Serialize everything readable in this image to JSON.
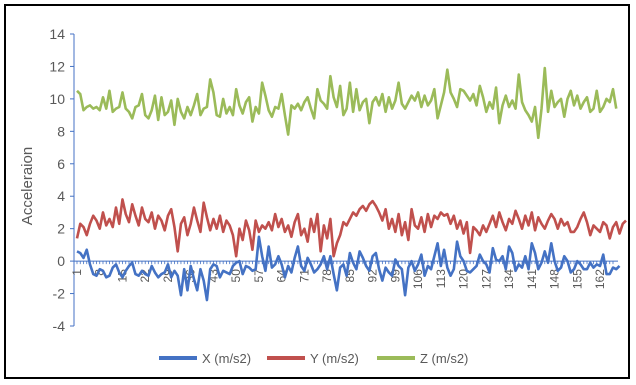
{
  "chart_data": {
    "type": "line",
    "title": "",
    "xlabel": "",
    "ylabel": "Acceleraion",
    "ylim": [
      -4,
      14
    ],
    "yticks": [
      -4,
      -2,
      0,
      2,
      4,
      6,
      8,
      10,
      12,
      14
    ],
    "xlim": [
      1,
      166
    ],
    "xticks": [
      1,
      8,
      15,
      22,
      29,
      36,
      43,
      50,
      57,
      64,
      71,
      78,
      85,
      92,
      99,
      106,
      113,
      120,
      127,
      134,
      141,
      148,
      155,
      162
    ],
    "grid": false,
    "legend_position": "bottom",
    "series": [
      {
        "name": "X (m/s2)",
        "color": "#4472C4",
        "values": [
          0.6,
          0.5,
          0.2,
          0.7,
          -0.2,
          -0.8,
          -0.9,
          -0.5,
          -0.6,
          -1.0,
          -0.9,
          -0.4,
          -0.2,
          -0.7,
          -1.0,
          -0.6,
          -0.3,
          -0.1,
          -0.8,
          -0.9,
          -0.6,
          -0.8,
          -0.9,
          -0.3,
          -0.7,
          -1.0,
          -0.8,
          -0.7,
          -0.2,
          -1.0,
          -0.6,
          -0.9,
          -2.1,
          -0.5,
          -1.8,
          -0.3,
          -1.1,
          -1.8,
          -0.5,
          -1.2,
          -2.4,
          -0.5,
          -0.2,
          -0.3,
          -1.0,
          -0.6,
          -0.7,
          -0.8,
          -0.3,
          -0.1,
          0.0,
          -0.8,
          -0.3,
          -0.4,
          -0.6,
          -0.5,
          1.5,
          0.3,
          -0.6,
          0.9,
          -0.4,
          -0.2,
          0.3,
          -0.2,
          -1.0,
          -0.3,
          -0.7,
          0.2,
          0.9,
          -0.3,
          -0.6,
          0.2,
          -0.2,
          -0.7,
          -0.5,
          -0.2,
          0.3,
          -0.5,
          0.3,
          -0.8,
          -1.8,
          -0.4,
          -0.2,
          -0.9,
          0.5,
          -0.1,
          -0.5,
          0.6,
          0.2,
          -0.3,
          -0.6,
          0.3,
          0.5,
          -0.5,
          -1.2,
          -0.4,
          -0.7,
          -0.9,
          0.1,
          -0.3,
          -0.5,
          -2.1,
          -0.4,
          0.0,
          -0.6,
          -0.2,
          0.4,
          -0.9,
          -0.3,
          -0.5,
          0.3,
          1.1,
          -0.3,
          0.7,
          -0.4,
          -0.9,
          -0.5,
          1.2,
          0.3,
          0.0,
          -0.6,
          -0.7,
          -0.5,
          -0.3,
          0.4,
          0.0,
          -0.2,
          -0.7,
          0.8,
          0.1,
          0.0,
          0.3,
          -0.5,
          0.9,
          0.5,
          -0.6,
          -0.2,
          -0.4,
          0.3,
          -0.5,
          1.1,
          0.5,
          -0.5,
          -0.1,
          0.6,
          -0.1,
          1.1,
          0.0,
          -0.6,
          -0.4,
          0.3,
          0.0,
          -0.7,
          -0.5,
          0.0,
          -0.2,
          -0.5,
          -0.5,
          -0.1,
          -0.4,
          -0.2,
          -0.3,
          0.4,
          -0.8,
          -0.8,
          -0.4,
          -0.5,
          -0.3
        ]
      },
      {
        "name": "Y (m/s2)",
        "color": "#C0504D",
        "values": [
          1.4,
          2.3,
          2.1,
          1.6,
          2.3,
          2.8,
          2.5,
          2.0,
          3.0,
          2.2,
          2.6,
          2.1,
          3.3,
          2.3,
          3.8,
          2.9,
          2.4,
          3.5,
          2.8,
          2.2,
          3.3,
          2.6,
          2.4,
          3.0,
          2.0,
          2.8,
          2.5,
          1.9,
          2.8,
          3.2,
          2.1,
          0.6,
          2.3,
          2.7,
          1.6,
          2.3,
          3.3,
          2.5,
          1.8,
          3.6,
          2.7,
          1.9,
          2.6,
          2.0,
          2.8,
          1.8,
          2.5,
          2.2,
          1.6,
          0.3,
          2.0,
          1.3,
          2.5,
          1.9,
          0.7,
          2.5,
          1.8,
          2.2,
          2.0,
          2.4,
          1.9,
          2.9,
          2.1,
          2.6,
          1.8,
          2.2,
          1.5,
          2.4,
          2.9,
          1.6,
          2.0,
          1.2,
          2.6,
          1.8,
          2.9,
          0.6,
          2.2,
          1.4,
          2.6,
          0.3,
          1.1,
          1.6,
          2.4,
          2.2,
          2.6,
          3.0,
          2.8,
          3.2,
          3.4,
          3.1,
          3.5,
          3.7,
          3.4,
          3.0,
          2.5,
          3.2,
          2.0,
          2.6,
          1.8,
          2.9,
          1.6,
          2.4,
          1.3,
          3.2,
          2.2,
          2.0,
          2.7,
          1.8,
          2.9,
          2.1,
          2.8,
          2.6,
          3.0,
          2.8,
          2.9,
          2.3,
          2.8,
          2.0,
          2.5,
          1.7,
          2.4,
          0.5,
          2.1,
          1.9,
          1.6,
          2.2,
          1.8,
          2.3,
          2.8,
          2.1,
          3.0,
          2.4,
          1.9,
          2.6,
          2.3,
          3.1,
          2.6,
          2.0,
          2.8,
          2.2,
          3.0,
          1.9,
          2.7,
          2.3,
          2.0,
          2.5,
          2.9,
          2.6,
          2.0,
          2.6,
          2.2,
          2.4,
          1.8,
          1.8,
          2.1,
          2.6,
          3.0,
          2.4,
          1.6,
          2.2,
          2.0,
          1.8,
          2.4,
          2.2,
          1.4,
          2.1,
          2.4,
          1.7,
          2.3,
          2.5
        ]
      },
      {
        "name": "Z (m/s2)",
        "color": "#9BBB59",
        "values": [
          10.5,
          10.3,
          9.3,
          9.5,
          9.6,
          9.4,
          9.5,
          9.3,
          10.1,
          9.4,
          10.5,
          9.2,
          9.4,
          9.5,
          10.4,
          9.4,
          9.2,
          8.8,
          9.5,
          9.6,
          10.3,
          9.0,
          8.8,
          9.3,
          10.2,
          8.7,
          10.1,
          9.0,
          9.2,
          9.9,
          8.4,
          10.0,
          9.2,
          8.8,
          9.5,
          9.0,
          9.6,
          10.3,
          9.0,
          9.4,
          9.5,
          11.2,
          10.4,
          9.0,
          8.9,
          10.0,
          9.1,
          9.5,
          9.0,
          10.6,
          9.6,
          9.1,
          9.8,
          10.1,
          8.6,
          9.5,
          9.1,
          11.0,
          10.2,
          9.3,
          8.9,
          9.5,
          9.4,
          10.3,
          9.0,
          7.8,
          9.6,
          9.4,
          9.7,
          9.3,
          9.8,
          10.1,
          9.4,
          8.8,
          10.6,
          9.9,
          9.7,
          9.4,
          11.4,
          10.1,
          9.5,
          10.8,
          9.0,
          9.4,
          11.0,
          9.2,
          10.6,
          9.3,
          9.8,
          10.0,
          8.5,
          9.8,
          10.1,
          9.6,
          10.3,
          9.2,
          10.1,
          9.4,
          9.9,
          11.0,
          9.7,
          9.4,
          9.8,
          10.2,
          9.9,
          10.4,
          9.5,
          10.2,
          9.6,
          9.9,
          10.6,
          8.8,
          9.6,
          10.4,
          11.8,
          10.4,
          10.0,
          9.5,
          10.6,
          10.5,
          10.2,
          9.9,
          10.3,
          9.6,
          10.8,
          10.1,
          9.2,
          9.8,
          9.4,
          10.7,
          8.5,
          9.6,
          10.2,
          9.5,
          9.9,
          9.4,
          11.5,
          9.8,
          9.3,
          9.0,
          8.6,
          9.5,
          7.6,
          9.4,
          11.9,
          9.2,
          10.5,
          9.5,
          9.8,
          10.0,
          8.9,
          10.0,
          10.5,
          9.6,
          10.2,
          9.4,
          9.8,
          10.1,
          9.2,
          9.4,
          10.5,
          9.2,
          9.5,
          10.0,
          9.8,
          10.6,
          9.4
        ]
      }
    ]
  }
}
